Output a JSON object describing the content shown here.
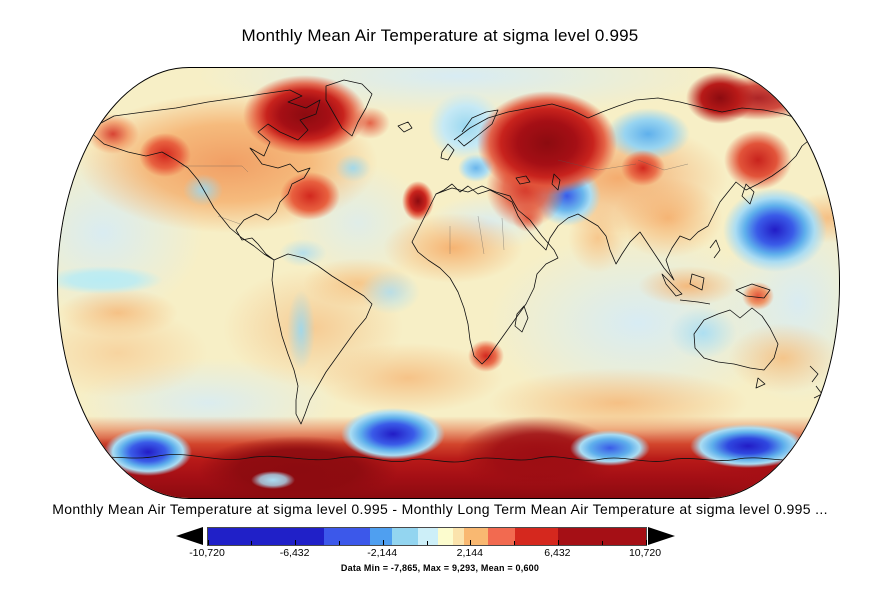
{
  "title": "Monthly Mean Air Temperature at sigma level 0.995",
  "subtitle": "Monthly Mean Air Temperature at sigma level 0.995 - Monthly Long Term Mean Air Temperature at sigma level 0.995 ...",
  "stats_line": "Data Min = -7,865, Max = 9,293, Mean = 0,600",
  "colorbar": {
    "tick_labels": [
      "-10,720",
      "-6,432",
      "-2,144",
      "2,144",
      "6,432",
      "10,720"
    ],
    "tick_values": [
      -10.72,
      -6.432,
      -2.144,
      2.144,
      6.432,
      10.72
    ],
    "range": [
      -10.72,
      10.72
    ],
    "minor_tick_percents": [
      10,
      30,
      50,
      70,
      90
    ],
    "segments": [
      {
        "color": "#2020c8",
        "width": 26.5
      },
      {
        "color": "#3c58ea",
        "width": 10.5
      },
      {
        "color": "#4f9ff0",
        "width": 5.0
      },
      {
        "color": "#93d5f0",
        "width": 6.0
      },
      {
        "color": "#cdeff8",
        "width": 4.5
      },
      {
        "color": "#fcfcce",
        "width": 3.5
      },
      {
        "color": "#fbe3ac",
        "width": 2.5
      },
      {
        "color": "#f9b871",
        "width": 5.5
      },
      {
        "color": "#f26a50",
        "width": 6.0
      },
      {
        "color": "#d5281e",
        "width": 10.0
      },
      {
        "color": "#a50f15",
        "width": 20.0
      }
    ],
    "underflow_arrow_color": "#000000",
    "overflow_arrow_color": "#000000"
  },
  "chart_data": {
    "type": "heatmap",
    "title": "Monthly Mean Air Temperature at sigma level 0.995",
    "subtitle": "Monthly Mean Air Temperature at sigma level 0.995 - Monthly Long Term Mean Air Temperature at sigma level 0.995 ...",
    "projection": "global elliptical (Robinson-style) world map, filled contour anomaly field with coastlines and country borders",
    "colorbar_range": [
      -10.72,
      10.72
    ],
    "colorbar_tick_values": [
      -10.72,
      -6.432,
      -2.144,
      2.144,
      6.432,
      10.72
    ],
    "palette": [
      "#2020c8",
      "#3c58ea",
      "#4f9ff0",
      "#93d5f0",
      "#cdeff8",
      "#fcfcce",
      "#fbe3ac",
      "#f9b871",
      "#f26a50",
      "#d5281e",
      "#a50f15"
    ],
    "data_min": -7.865,
    "data_max": 9.293,
    "data_mean": 0.6,
    "notable_anomalies": [
      {
        "region": "Arctic Canada / Baffin Island",
        "sign": "warm",
        "approx_value": 8
      },
      {
        "region": "Western Russia / Urals",
        "sign": "warm",
        "approx_value": 9
      },
      {
        "region": "Northeast Siberia / Chukotka",
        "sign": "warm",
        "approx_value": 7
      },
      {
        "region": "Sea of Okhotsk / Kamchatka",
        "sign": "warm",
        "approx_value": 5
      },
      {
        "region": "Alaska and western North America",
        "sign": "warm",
        "approx_value": 4
      },
      {
        "region": "Eastern United States / Quebec",
        "sign": "warm",
        "approx_value": 4
      },
      {
        "region": "Morocco / Northwest Africa",
        "sign": "warm",
        "approx_value": 7
      },
      {
        "region": "Antarctic coastal band (circumpolar)",
        "sign": "warm",
        "approx_value": 9
      },
      {
        "region": "North Pacific east of Japan",
        "sign": "cool",
        "approx_value": -7
      },
      {
        "region": "Iran / Central Asia",
        "sign": "cool",
        "approx_value": -4
      },
      {
        "region": "Central northern Siberia",
        "sign": "cool",
        "approx_value": -3
      },
      {
        "region": "Scandinavia / Baltic",
        "sign": "cool",
        "approx_value": -2
      },
      {
        "region": "Southeast Pacific Southern Ocean",
        "sign": "cool",
        "approx_value": -7
      },
      {
        "region": "South Atlantic Southern Ocean",
        "sign": "cool",
        "approx_value": -7
      },
      {
        "region": "Southern Ocean south of Australia / New Zealand",
        "sign": "cool",
        "approx_value": -8
      },
      {
        "region": "Western Australia",
        "sign": "cool",
        "approx_value": -2
      },
      {
        "region": "Tropical Indian Ocean",
        "sign": "cool",
        "approx_value": -1
      }
    ]
  }
}
